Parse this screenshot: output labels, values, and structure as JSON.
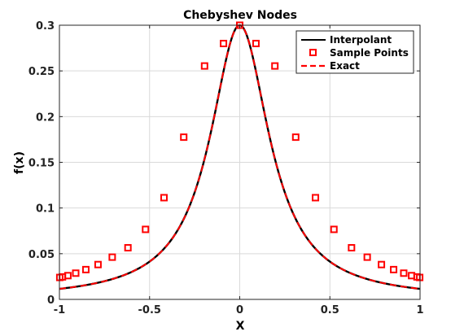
{
  "chart_data": {
    "type": "line",
    "title": "Chebyshev Nodes",
    "xlabel": "X",
    "ylabel": "f(x)",
    "xlim": [
      -1,
      1
    ],
    "ylim": [
      0,
      0.3
    ],
    "xticks": [
      "-1",
      "-0.5",
      "0",
      "0.5",
      "1"
    ],
    "xtick_values": [
      -1,
      -0.5,
      0,
      0.5,
      1
    ],
    "yticks": [
      "0",
      "0.05",
      "0.1",
      "0.15",
      "0.2",
      "0.25",
      "0.3"
    ],
    "ytick_values": [
      0,
      0.05,
      0.1,
      0.15,
      0.2,
      0.25,
      0.3
    ],
    "grid": true,
    "legend_position": "top-right",
    "series": [
      {
        "name": "Interpolant",
        "style": "line",
        "color": "#000000",
        "function": "0.3/(1+25x^2)"
      },
      {
        "name": "Sample Points",
        "style": "square-markers",
        "color": "#ff0000",
        "x": [
          -0.9981,
          -0.983,
          -0.953,
          -0.9096,
          -0.8535,
          -0.7859,
          -0.7071,
          -0.62,
          -0.5225,
          -0.42,
          -0.3105,
          -0.195,
          -0.09,
          0,
          0.09,
          0.195,
          0.3105,
          0.42,
          0.5225,
          0.62,
          0.7071,
          0.7859,
          0.8535,
          0.9096,
          0.953,
          0.983,
          0.9981
        ],
        "y": [
          0.024,
          0.0246,
          0.026,
          0.0287,
          0.0326,
          0.0381,
          0.0462,
          0.0565,
          0.0766,
          0.1113,
          0.1775,
          0.2554,
          0.28,
          0.3,
          0.28,
          0.2554,
          0.1775,
          0.1113,
          0.0766,
          0.0565,
          0.0462,
          0.0381,
          0.0326,
          0.0287,
          0.026,
          0.0246,
          0.024
        ]
      },
      {
        "name": "Exact",
        "style": "dashed-line",
        "color": "#ff0000",
        "function": "0.3/(1+25x^2)"
      }
    ]
  }
}
